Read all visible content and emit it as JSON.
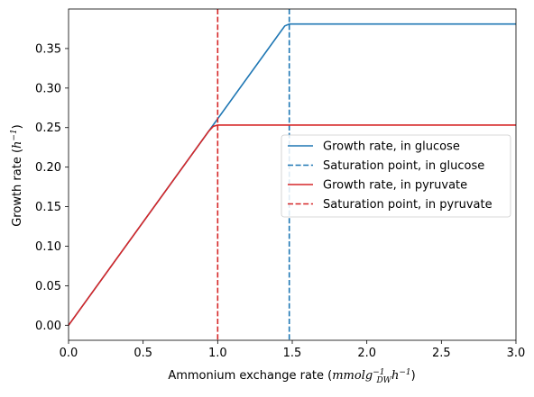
{
  "chart_data": {
    "type": "line",
    "xlabel": {
      "prefix": "Ammonium exchange rate (",
      "base": "mmolg",
      "sub": "DW",
      "exp1": "−1",
      "h": "h",
      "exp2": "−1",
      "suffix": ")"
    },
    "ylabel": {
      "prefix": "Growth rate (",
      "h": "h",
      "exp": "−1",
      "suffix": ")"
    },
    "xlim": [
      0,
      3
    ],
    "ylim": [
      -0.019,
      0.4
    ],
    "xticks": [
      0,
      0.5,
      1,
      1.5,
      2,
      2.5,
      3
    ],
    "xtick_labels": [
      "0.0",
      "0.5",
      "1.0",
      "1.5",
      "2.0",
      "2.5",
      "3.0"
    ],
    "yticks": [
      0,
      0.05,
      0.1,
      0.15,
      0.2,
      0.25,
      0.3,
      0.35
    ],
    "ytick_labels": [
      "0.00",
      "0.05",
      "0.10",
      "0.15",
      "0.20",
      "0.25",
      "0.30",
      "0.35"
    ],
    "grid": false,
    "legend_position": "center-right",
    "series": [
      {
        "name": "Growth rate, in glucose",
        "kind": "line",
        "color": "#1f77b4",
        "style": "solid",
        "x": [
          0,
          0.96,
          1.42,
          1.45,
          1.48,
          3.0
        ],
        "y": [
          0,
          0.2507,
          0.3708,
          0.3786,
          0.381,
          0.381
        ]
      },
      {
        "name": "Saturation point, in glucose",
        "kind": "vline",
        "color": "#1f77b4",
        "style": "dashed",
        "x_value": 1.48
      },
      {
        "name": "Growth rate, in pyruvate",
        "kind": "line",
        "color": "#d62728",
        "style": "solid",
        "x": [
          0,
          0.94,
          0.97,
          1.0,
          3.0
        ],
        "y": [
          0,
          0.2455,
          0.2515,
          0.2532,
          0.2532
        ]
      },
      {
        "name": "Saturation point, in pyruvate",
        "kind": "vline",
        "color": "#d62728",
        "style": "dashed",
        "x_value": 1.0
      }
    ]
  }
}
